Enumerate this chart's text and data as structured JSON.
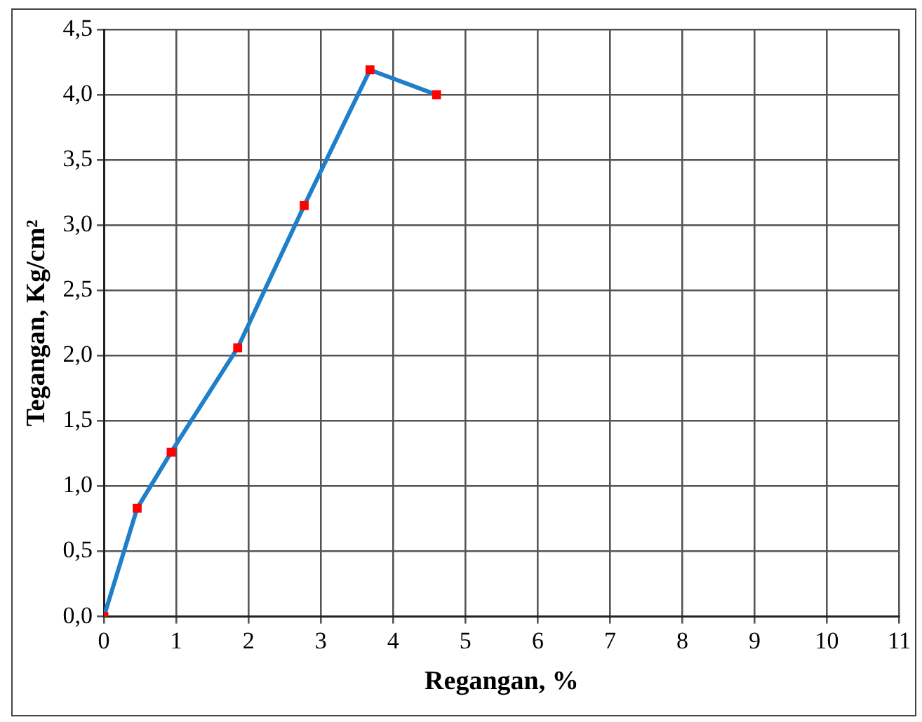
{
  "chart_data": {
    "type": "line",
    "xlabel": "Regangan, %",
    "ylabel": "Tegangan, Kg/cm²",
    "x": [
      0,
      0.46,
      0.93,
      1.85,
      2.77,
      3.68,
      4.6
    ],
    "series": [
      {
        "color": "#1f7fc8",
        "colors": [
          "#ff0000",
          "#ff0000",
          "#ff0000",
          "#ff0000",
          "#ff0000",
          "#ff0000",
          "#ff0000"
        ],
        "values": [
          0,
          0.83,
          1.26,
          2.06,
          3.15,
          4.19,
          4.0
        ]
      }
    ],
    "marker": "square",
    "line_style": "solid",
    "xlim": [
      0,
      11
    ],
    "xticks": [
      0,
      1,
      2,
      3,
      4,
      5,
      6,
      7,
      8,
      9,
      10,
      11
    ],
    "ylim": [
      0,
      4.5
    ],
    "yticks": [
      {
        "value": 0,
        "label": "0,0"
      },
      {
        "value": 0.5,
        "label": "0,5"
      },
      {
        "value": 1,
        "label": "1,0"
      },
      {
        "value": 1.5,
        "label": "1,5"
      },
      {
        "value": 2,
        "label": "2,0"
      },
      {
        "value": 2.5,
        "label": "2,5"
      },
      {
        "value": 3,
        "label": "3,0"
      },
      {
        "value": 3.5,
        "label": "3,5"
      },
      {
        "value": 4,
        "label": "4,0"
      },
      {
        "value": 4.5,
        "label": "4,5"
      }
    ],
    "grid": true,
    "legend": false
  }
}
